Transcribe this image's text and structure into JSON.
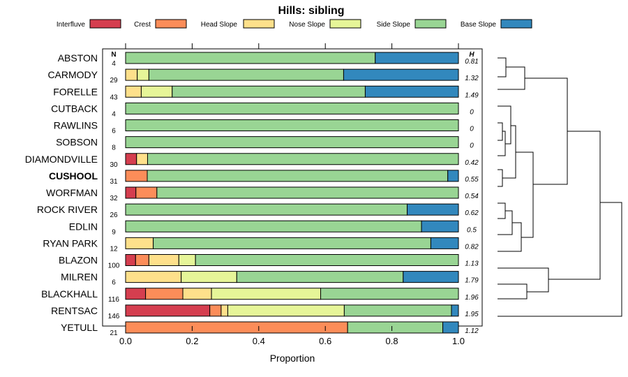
{
  "chart_data": {
    "type": "bar",
    "stacked": true,
    "orientation": "horizontal",
    "title": "Hills: sibling",
    "xlabel": "Proportion",
    "xlim": [
      0,
      1
    ],
    "xticks": [
      "0.0",
      "0.2",
      "0.4",
      "0.6",
      "0.8",
      "1.0"
    ],
    "n_header": "N",
    "h_header": "H",
    "highlight": "CUSHOOL",
    "series": [
      {
        "name": "Interfluve",
        "color": "#d53e4f"
      },
      {
        "name": "Crest",
        "color": "#fc8d59"
      },
      {
        "name": "Head Slope",
        "color": "#fee08b"
      },
      {
        "name": "Nose Slope",
        "color": "#e6f598"
      },
      {
        "name": "Side Slope",
        "color": "#99d594"
      },
      {
        "name": "Base Slope",
        "color": "#3288bd"
      }
    ],
    "rows": [
      {
        "label": "ABSTON",
        "n": "4",
        "h": "0.81",
        "values": [
          0,
          0,
          0,
          0,
          0.75,
          0.25
        ]
      },
      {
        "label": "CARMODY",
        "n": "29",
        "h": "1.32",
        "values": [
          0,
          0,
          0.035,
          0.035,
          0.585,
          0.345
        ]
      },
      {
        "label": "FORELLE",
        "n": "43",
        "h": "1.49",
        "values": [
          0,
          0,
          0.047,
          0.093,
          0.58,
          0.28
        ]
      },
      {
        "label": "CUTBACK",
        "n": "4",
        "h": "0",
        "values": [
          0,
          0,
          0,
          0,
          1.0,
          0
        ]
      },
      {
        "label": "RAWLINS",
        "n": "6",
        "h": "0",
        "values": [
          0,
          0,
          0,
          0,
          1.0,
          0
        ]
      },
      {
        "label": "SOBSON",
        "n": "8",
        "h": "0",
        "values": [
          0,
          0,
          0,
          0,
          1.0,
          0
        ]
      },
      {
        "label": "DIAMONDVILLE",
        "n": "30",
        "h": "0.42",
        "values": [
          0.033,
          0,
          0.033,
          0,
          0.934,
          0
        ]
      },
      {
        "label": "CUSHOOL",
        "n": "31",
        "h": "0.55",
        "values": [
          0,
          0.065,
          0,
          0,
          0.903,
          0.032
        ]
      },
      {
        "label": "WORFMAN",
        "n": "32",
        "h": "0.54",
        "values": [
          0.031,
          0.063,
          0,
          0,
          0.906,
          0
        ]
      },
      {
        "label": "ROCK RIVER",
        "n": "26",
        "h": "0.62",
        "values": [
          0,
          0,
          0,
          0,
          0.846,
          0.154
        ]
      },
      {
        "label": "EDLIN",
        "n": "9",
        "h": "0.5",
        "values": [
          0,
          0,
          0,
          0,
          0.889,
          0.111
        ]
      },
      {
        "label": "RYAN PARK",
        "n": "12",
        "h": "0.82",
        "values": [
          0,
          0,
          0.083,
          0,
          0.834,
          0.083
        ]
      },
      {
        "label": "BLAZON",
        "n": "100",
        "h": "1.13",
        "values": [
          0.03,
          0.04,
          0.09,
          0.05,
          0.79,
          0
        ]
      },
      {
        "label": "MILREN",
        "n": "6",
        "h": "1.79",
        "values": [
          0,
          0,
          0.167,
          0.167,
          0.5,
          0.166
        ]
      },
      {
        "label": "BLACKHALL",
        "n": "116",
        "h": "1.96",
        "values": [
          0.06,
          0.112,
          0.086,
          0.328,
          0.414,
          0
        ]
      },
      {
        "label": "RENTSAC",
        "n": "146",
        "h": "1.95",
        "values": [
          0.253,
          0.034,
          0.02,
          0.35,
          0.322,
          0.021
        ]
      },
      {
        "label": "YETULL",
        "n": "21",
        "h": "1.12",
        "values": [
          0,
          0.667,
          0,
          0,
          0.286,
          0.047
        ]
      }
    ]
  }
}
